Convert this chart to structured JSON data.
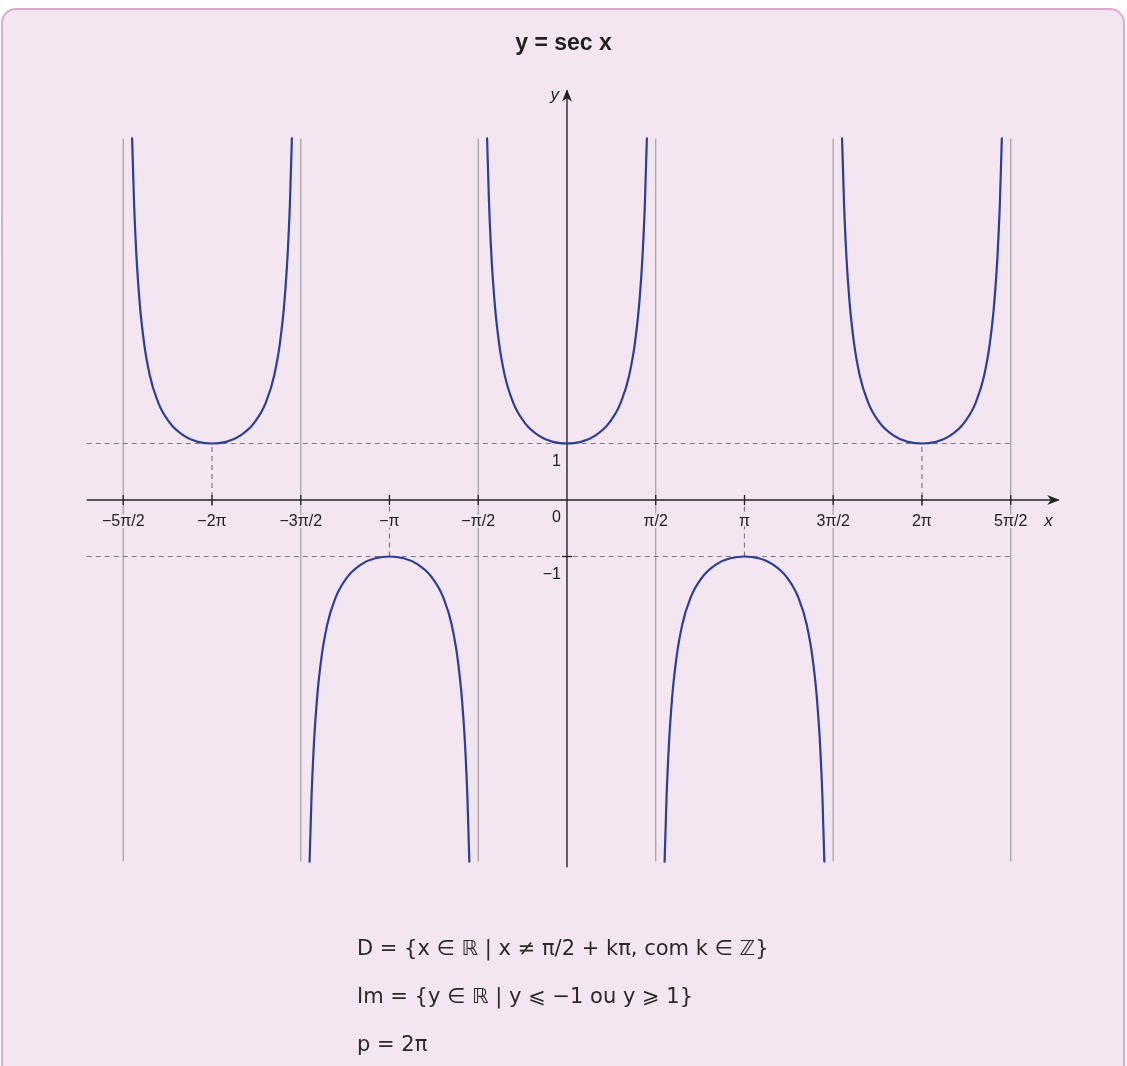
{
  "chart_data": {
    "type": "line",
    "title": "y = sec x",
    "xlabel": "x",
    "ylabel": "y",
    "xlim": [
      -8.5,
      8.7
    ],
    "ylim": [
      -6.5,
      7.25
    ],
    "xticks": [
      {
        "value": -7.854,
        "label": "−5π/2"
      },
      {
        "value": -6.283,
        "label": "−2π"
      },
      {
        "value": -4.712,
        "label": "−3π/2"
      },
      {
        "value": -3.142,
        "label": "−π"
      },
      {
        "value": -1.571,
        "label": "−π/2"
      },
      {
        "value": 1.571,
        "label": "π/2"
      },
      {
        "value": 3.142,
        "label": "π"
      },
      {
        "value": 4.712,
        "label": "3π/2"
      },
      {
        "value": 6.283,
        "label": "2π"
      },
      {
        "value": 7.854,
        "label": "5π/2"
      }
    ],
    "yticks": [
      {
        "value": -1,
        "label": "−1"
      },
      0,
      1
    ],
    "series": [
      {
        "color": "#2b3f94",
        "x": [
          -7.697,
          -7.663,
          -7.623,
          -7.563,
          -7.483,
          -7.383,
          -7.233,
          -7.033,
          -6.783,
          -6.533,
          -6.283,
          -6.033,
          -5.783,
          -5.533,
          -5.333,
          -5.183,
          -5.083,
          -5.003,
          -4.943,
          -4.903,
          -4.869,
          -4.712,
          -4.556,
          -4.522,
          -4.482,
          -4.422,
          -4.342,
          -4.242,
          -4.092,
          -3.892,
          -3.642,
          -3.392,
          -3.142,
          -2.892,
          -2.642,
          -2.392,
          -2.192,
          -2.042,
          -1.942,
          -1.862,
          -1.802,
          -1.762,
          -1.728,
          -1.571,
          -1.414,
          -1.38,
          -1.34,
          -1.28,
          -1.2,
          -1.1,
          -0.95,
          -0.75,
          -0.5,
          -0.25,
          0,
          0.25,
          0.5,
          0.75,
          0.95,
          1.1,
          1.2,
          1.28,
          1.34,
          1.38,
          1.414,
          1.571,
          1.728,
          1.762,
          1.802,
          1.862,
          1.942,
          2.042,
          2.192,
          2.392,
          2.642,
          2.892,
          3.142,
          3.392,
          3.642,
          3.892,
          4.092,
          4.242,
          4.342,
          4.422,
          4.482,
          4.522,
          4.556,
          4.712,
          4.869,
          4.903,
          4.943,
          5.003,
          5.083,
          5.183,
          5.333,
          5.533,
          5.783,
          6.033,
          6.283,
          6.533,
          6.783,
          7.033,
          7.233,
          7.383,
          7.483,
          7.563,
          7.623,
          7.663,
          7.697
        ],
        "values": [
          6.4,
          5.27,
          4.37,
          3.49,
          2.76,
          2.2,
          1.72,
          1.37,
          1.14,
          1.03,
          1,
          1.03,
          1.14,
          1.37,
          1.72,
          2.2,
          2.76,
          3.49,
          4.37,
          5.27,
          6.4,
          null,
          -6.4,
          -5.27,
          -4.37,
          -3.49,
          -2.76,
          -2.2,
          -1.72,
          -1.37,
          -1.14,
          -1.03,
          -1,
          -1.03,
          -1.14,
          -1.37,
          -1.72,
          -2.2,
          -2.76,
          -3.49,
          -4.37,
          -5.27,
          -6.4,
          null,
          6.4,
          5.27,
          4.37,
          3.49,
          2.76,
          2.2,
          1.72,
          1.37,
          1.14,
          1.03,
          1,
          1.03,
          1.14,
          1.37,
          1.72,
          2.2,
          2.76,
          3.49,
          4.37,
          5.27,
          6.4,
          null,
          -6.4,
          -5.27,
          -4.37,
          -3.49,
          -2.76,
          -2.2,
          -1.72,
          -1.37,
          -1.14,
          -1.03,
          -1,
          -1.03,
          -1.14,
          -1.37,
          -1.72,
          -2.2,
          -2.76,
          -3.49,
          -4.37,
          -5.27,
          -6.4,
          null,
          6.4,
          5.27,
          4.37,
          3.49,
          2.76,
          2.2,
          1.72,
          1.37,
          1.14,
          1.03,
          1,
          1.03,
          1.14,
          1.37,
          1.72,
          2.2,
          2.76,
          3.49,
          4.37,
          5.27,
          6.4
        ]
      }
    ],
    "ref_lines": [
      {
        "axis": "x",
        "value": -7.854,
        "color": "#a09ca2"
      },
      {
        "axis": "x",
        "value": -4.712,
        "color": "#a09ca2"
      },
      {
        "axis": "x",
        "value": -1.571,
        "color": "#a09ca2"
      },
      {
        "axis": "x",
        "value": 1.571,
        "color": "#a09ca2"
      },
      {
        "axis": "x",
        "value": 4.712,
        "color": "#a09ca2"
      },
      {
        "axis": "x",
        "value": 7.854,
        "color": "#a09ca2"
      },
      {
        "axis": "y",
        "value": 1,
        "color": "#807a82",
        "line_style": "dashed"
      },
      {
        "axis": "y",
        "value": -1,
        "color": "#807a82",
        "line_style": "dashed"
      },
      {
        "axis": "x",
        "value": -6.283,
        "color": "#807a82",
        "line_style": "dashed"
      },
      {
        "axis": "x",
        "value": -3.142,
        "color": "#807a82",
        "line_style": "dashed"
      },
      {
        "axis": "x",
        "value": 3.142,
        "color": "#807a82",
        "line_style": "dashed"
      },
      {
        "axis": "x",
        "value": 6.283,
        "color": "#807a82",
        "line_style": "dashed"
      }
    ],
    "annotations": [
      "D = {x ∈ ℝ | x ≠ π/2 + kπ, com k ∈ ℤ}",
      "Im = {y ∈ ℝ | y ⩽ −1 ou y ⩾ 1}",
      "p = 2π"
    ]
  }
}
